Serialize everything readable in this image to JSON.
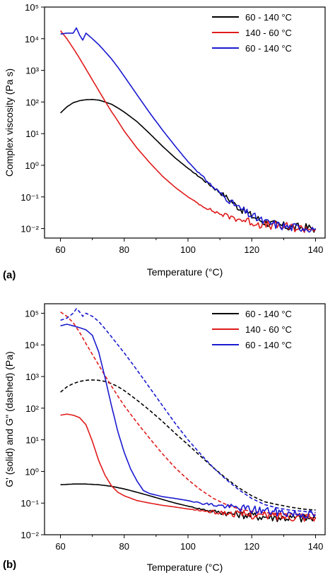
{
  "chart_data": [
    {
      "type": "line",
      "panel_label": "(a)",
      "xlabel": "Temperature (°C)",
      "ylabel": "Complex viscosity (Pa s)",
      "xlim": [
        55,
        143
      ],
      "ylim_exp": [
        -2.3,
        5
      ],
      "y_scale": "log",
      "x_ticks": [
        60,
        80,
        100,
        120,
        140
      ],
      "x_tick_labels": [
        "60",
        "80",
        "100",
        "120",
        "140"
      ],
      "y_ticks_exp": [
        -2,
        -1,
        0,
        1,
        2,
        3,
        4,
        5
      ],
      "legend_position": "top-right",
      "series": [
        {
          "name": "60 - 140 °C",
          "color": "#000000",
          "style": "solid",
          "x": [
            60,
            62,
            64,
            66,
            68,
            70,
            72,
            74,
            76,
            78,
            80,
            84,
            88,
            92,
            96,
            100,
            104,
            108,
            112,
            116,
            120,
            124,
            128,
            132,
            136,
            140
          ],
          "y": [
            45,
            70,
            95,
            110,
            118,
            120,
            115,
            100,
            85,
            65,
            48,
            24,
            10,
            4,
            1.7,
            0.8,
            0.4,
            0.2,
            0.1,
            0.045,
            0.025,
            0.016,
            0.013,
            0.011,
            0.011,
            0.01
          ]
        },
        {
          "name": "140 - 60 °C",
          "color": "#e01b1b",
          "style": "solid",
          "x": [
            60,
            62,
            64,
            66,
            68,
            70,
            72,
            74,
            76,
            78,
            80,
            84,
            88,
            92,
            96,
            100,
            104,
            108,
            112,
            116,
            120,
            124,
            128,
            132,
            136,
            140
          ],
          "y": [
            18000,
            10000,
            5000,
            2400,
            1100,
            500,
            230,
            105,
            50,
            25,
            12,
            3.5,
            1.2,
            0.45,
            0.2,
            0.1,
            0.055,
            0.035,
            0.025,
            0.02,
            0.016,
            0.013,
            0.012,
            0.011,
            0.01,
            0.01
          ]
        },
        {
          "name": "60 - 140 °C",
          "color": "#1a1ad0",
          "style": "solid",
          "x": [
            60,
            62,
            64,
            65,
            66,
            67,
            68,
            70,
            72,
            74,
            76,
            78,
            80,
            84,
            88,
            92,
            96,
            100,
            104,
            108,
            112,
            116,
            120,
            124,
            128,
            132,
            136,
            140
          ],
          "y": [
            14000,
            15000,
            15000,
            22000,
            13000,
            9000,
            15000,
            10000,
            6500,
            3900,
            2300,
            1250,
            650,
            170,
            45,
            13,
            4,
            1.3,
            0.5,
            0.2,
            0.09,
            0.045,
            0.025,
            0.016,
            0.013,
            0.011,
            0.011,
            0.01
          ]
        }
      ]
    },
    {
      "type": "line",
      "panel_label": "(b)",
      "xlabel": "Temperature (°C)",
      "ylabel": "G' (solid) and G'' (dashed) (Pa)",
      "xlim": [
        55,
        143
      ],
      "ylim_exp": [
        -2,
        5.3
      ],
      "y_scale": "log",
      "x_ticks": [
        60,
        80,
        100,
        120,
        140
      ],
      "x_tick_labels": [
        "60",
        "80",
        "100",
        "120",
        "140"
      ],
      "y_ticks_exp": [
        -2,
        -1,
        0,
        1,
        2,
        3,
        4,
        5
      ],
      "legend_position": "top-right",
      "legend": [
        {
          "name": "60 - 140 °C",
          "color": "#000000"
        },
        {
          "name": "140 - 60 °C",
          "color": "#e01b1b"
        },
        {
          "name": "60 - 140 °C",
          "color": "#1a1ad0"
        }
      ],
      "series": [
        {
          "color": "#000000",
          "style": "solid",
          "x": [
            60,
            64,
            68,
            72,
            76,
            80,
            84,
            88,
            92,
            96,
            100,
            104,
            108,
            112,
            116,
            120,
            124,
            128,
            132,
            136,
            140
          ],
          "y": [
            0.38,
            0.4,
            0.4,
            0.38,
            0.34,
            0.28,
            0.22,
            0.17,
            0.13,
            0.1,
            0.08,
            0.065,
            0.055,
            0.048,
            0.044,
            0.04,
            0.037,
            0.035,
            0.034,
            0.033,
            0.032
          ]
        },
        {
          "color": "#000000",
          "style": "dashed",
          "x": [
            60,
            62,
            64,
            66,
            68,
            70,
            72,
            74,
            76,
            78,
            80,
            84,
            88,
            92,
            96,
            100,
            104,
            108,
            112,
            116,
            120,
            124,
            128,
            132,
            136,
            140
          ],
          "y": [
            320,
            470,
            600,
            700,
            760,
            780,
            760,
            700,
            600,
            480,
            360,
            180,
            85,
            38,
            16,
            7,
            3,
            1.3,
            0.6,
            0.3,
            0.17,
            0.11,
            0.09,
            0.075,
            0.065,
            0.06
          ]
        },
        {
          "color": "#e01b1b",
          "style": "solid",
          "x": [
            60,
            62,
            64,
            66,
            68,
            70,
            72,
            74,
            76,
            78,
            80,
            84,
            88,
            92,
            96,
            100,
            104,
            108,
            112,
            116,
            120,
            124,
            128,
            132,
            136,
            140
          ],
          "y": [
            60,
            65,
            60,
            50,
            30,
            9,
            2.2,
            0.75,
            0.35,
            0.22,
            0.17,
            0.12,
            0.1,
            0.085,
            0.075,
            0.065,
            0.058,
            0.052,
            0.048,
            0.045,
            0.043,
            0.04,
            0.039,
            0.038,
            0.037,
            0.036
          ]
        },
        {
          "color": "#e01b1b",
          "style": "dashed",
          "x": [
            60,
            62,
            64,
            66,
            68,
            70,
            72,
            74,
            76,
            78,
            80,
            84,
            88,
            92,
            96,
            100,
            104,
            108,
            112,
            116,
            120,
            124,
            128,
            132,
            136,
            140
          ],
          "y": [
            110000,
            80000,
            50000,
            25000,
            11000,
            5000,
            2300,
            1050,
            500,
            240,
            120,
            35,
            11,
            3.6,
            1.3,
            0.55,
            0.26,
            0.14,
            0.09,
            0.065,
            0.055,
            0.05,
            0.047,
            0.045,
            0.044,
            0.043
          ]
        },
        {
          "color": "#1a1ad0",
          "style": "solid",
          "x": [
            60,
            62,
            64,
            66,
            68,
            70,
            72,
            74,
            76,
            78,
            80,
            82,
            84,
            86,
            88,
            92,
            96,
            100,
            104,
            108,
            112,
            116,
            120,
            124,
            128,
            132,
            136,
            140
          ],
          "y": [
            40000,
            45000,
            40000,
            35000,
            30000,
            20000,
            6000,
            900,
            120,
            18,
            4,
            1.2,
            0.5,
            0.25,
            0.2,
            0.16,
            0.14,
            0.12,
            0.1,
            0.088,
            0.078,
            0.07,
            0.063,
            0.057,
            0.052,
            0.048,
            0.045,
            0.043
          ]
        },
        {
          "color": "#1a1ad0",
          "style": "dashed",
          "x": [
            60,
            62,
            64,
            65,
            66,
            67,
            68,
            70,
            72,
            74,
            76,
            78,
            80,
            84,
            88,
            92,
            96,
            100,
            104,
            108,
            112,
            116,
            120,
            124,
            128,
            132,
            136,
            140
          ],
          "y": [
            60000,
            70000,
            100000,
            140000,
            110000,
            80000,
            100000,
            80000,
            55000,
            32000,
            18000,
            10000,
            5600,
            1600,
            440,
            120,
            33,
            10,
            3.5,
            1.3,
            0.55,
            0.26,
            0.14,
            0.09,
            0.07,
            0.06,
            0.055,
            0.05
          ]
        }
      ]
    }
  ]
}
